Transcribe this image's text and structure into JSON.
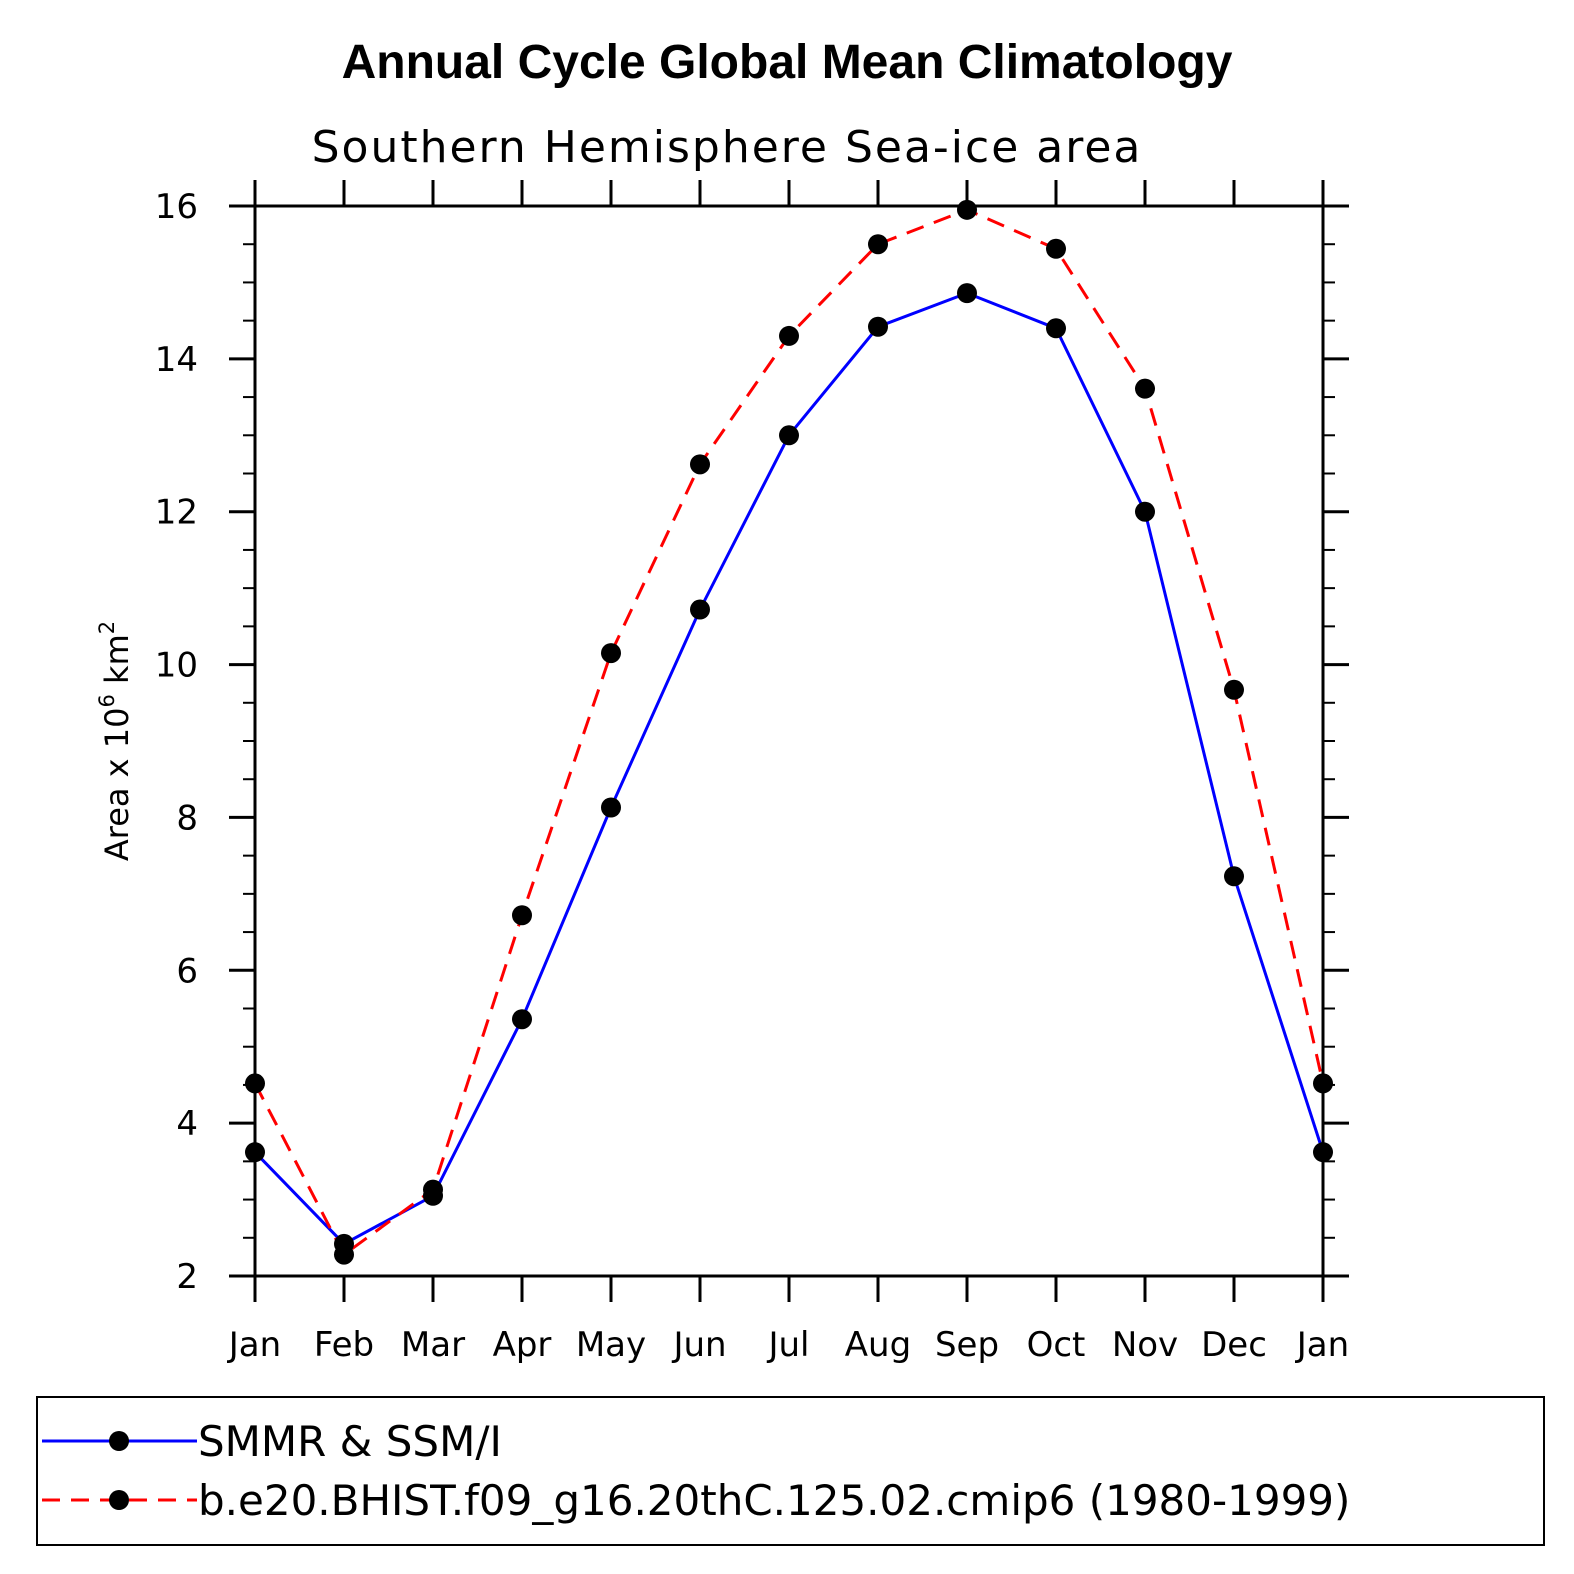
{
  "chart_data": {
    "type": "line",
    "title": "Annual Cycle Global Mean Climatology",
    "subtitle": "Southern Hemisphere Sea-ice area",
    "ylabel_parts": [
      "Area x 10",
      "6",
      " km",
      "2"
    ],
    "xlabel": "",
    "categories": [
      "Jan",
      "Feb",
      "Mar",
      "Apr",
      "May",
      "Jun",
      "Jul",
      "Aug",
      "Sep",
      "Oct",
      "Nov",
      "Dec",
      "Jan"
    ],
    "ylim": [
      2,
      16
    ],
    "yticks": [
      2,
      4,
      6,
      8,
      10,
      12,
      14,
      16
    ],
    "grid": false,
    "legend_position": "bottom",
    "series": [
      {
        "name": "SMMR & SSM/I",
        "color": "#0000ff",
        "dash": "solid",
        "values": [
          3.62,
          2.42,
          3.05,
          5.36,
          8.13,
          10.72,
          13.0,
          14.42,
          14.86,
          14.4,
          12.0,
          7.23,
          3.62
        ]
      },
      {
        "name": "b.e20.BHIST.f09_g16.20thC.125.02.cmip6 (1980-1999)",
        "color": "#ff0000",
        "dash": "dashed",
        "values": [
          4.52,
          2.28,
          3.13,
          6.72,
          10.15,
          12.62,
          14.3,
          15.5,
          15.95,
          15.44,
          13.61,
          9.67,
          4.52
        ]
      }
    ]
  }
}
